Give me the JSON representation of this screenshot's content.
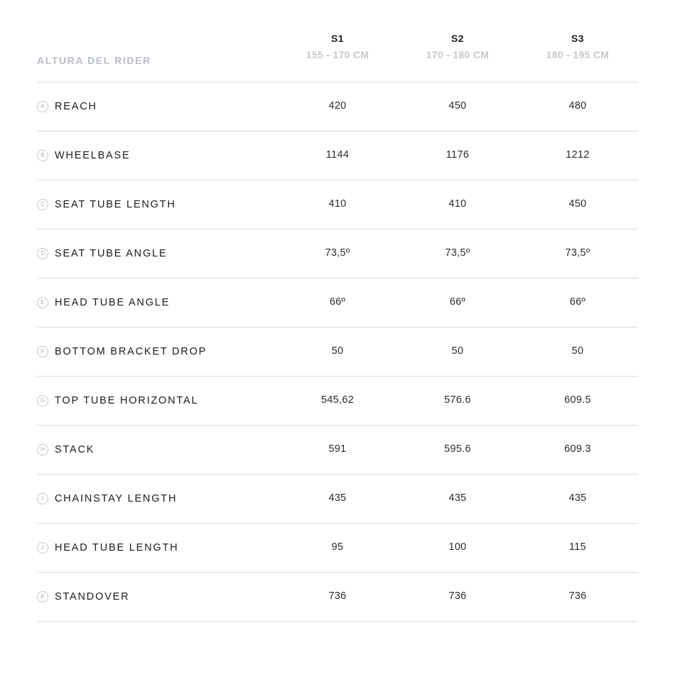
{
  "header": {
    "rider_label": "ALTURA DEL RIDER",
    "sizes": [
      {
        "name": "S1",
        "range": "155 - 170 CM"
      },
      {
        "name": "S2",
        "range": "170 - 180 CM"
      },
      {
        "name": "S3",
        "range": "180 - 195 CM"
      }
    ]
  },
  "rows": [
    {
      "badge": "A",
      "label": "REACH",
      "values": [
        "420",
        "450",
        "480"
      ]
    },
    {
      "badge": "B",
      "label": "WHEELBASE",
      "values": [
        "1144",
        "1176",
        "1212"
      ]
    },
    {
      "badge": "C",
      "label": "SEAT TUBE LENGTH",
      "values": [
        "410",
        "410",
        "450"
      ]
    },
    {
      "badge": "D",
      "label": "SEAT TUBE ANGLE",
      "values": [
        "73,5º",
        "73,5º",
        "73,5º"
      ]
    },
    {
      "badge": "E",
      "label": "HEAD TUBE ANGLE",
      "values": [
        "66º",
        "66º",
        "66º"
      ]
    },
    {
      "badge": "F",
      "label": "BOTTOM BRACKET DROP",
      "values": [
        "50",
        "50",
        "50"
      ]
    },
    {
      "badge": "G",
      "label": "TOP TUBE HORIZONTAL",
      "values": [
        "545,62",
        "576.6",
        "609.5"
      ]
    },
    {
      "badge": "H",
      "label": "STACK",
      "values": [
        "591",
        "595.6",
        "609.3"
      ]
    },
    {
      "badge": "I",
      "label": "CHAINSTAY LENGTH",
      "values": [
        "435",
        "435",
        "435"
      ]
    },
    {
      "badge": "J",
      "label": "HEAD TUBE LENGTH",
      "values": [
        "95",
        "100",
        "115"
      ]
    },
    {
      "badge": "K",
      "label": "STANDOVER",
      "values": [
        "736",
        "736",
        "736"
      ]
    }
  ]
}
